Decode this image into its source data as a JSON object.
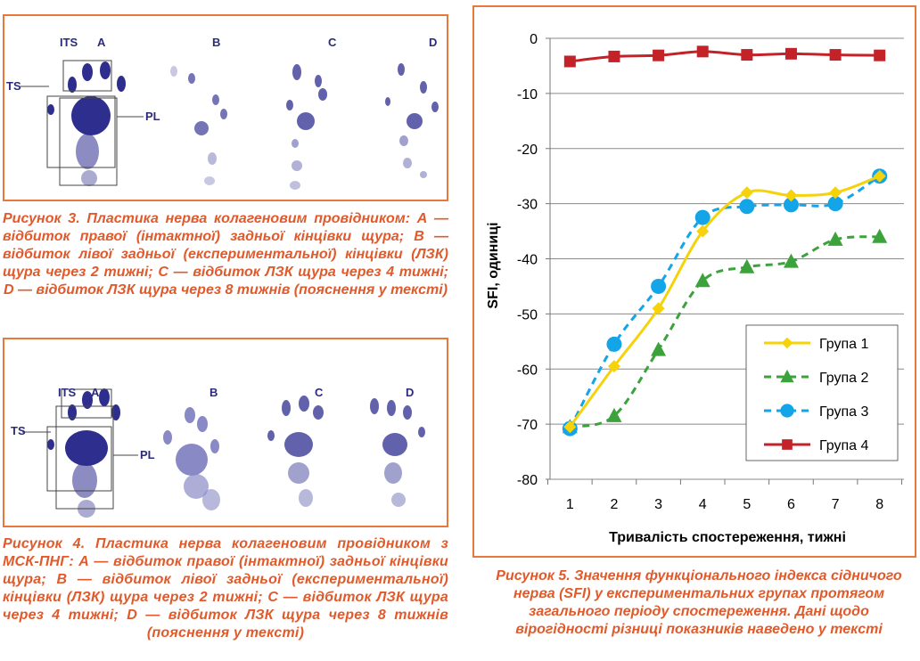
{
  "figure3": {
    "labels": {
      "its": "ITS",
      "a": "A",
      "b": "B",
      "c": "C",
      "d": "D",
      "ts": "TS",
      "pl": "PL"
    },
    "caption": "Рисунок 3. Пластика нерва колагеновим провідником: А — відбиток правої (інтактної) задньої кінцівки щура; В — відбиток лівої задньої (експериментальної) кінцівки (ЛЗК) щура через 2 тижні; С — відбиток ЛЗК щура через 4 тижні; D — відбиток ЛЗК щура через 8 тижнів (пояснення у тексті)"
  },
  "figure4": {
    "labels": {
      "its": "ITS",
      "a": "A",
      "b": "B",
      "c": "C",
      "d": "D",
      "ts": "TS",
      "pl": "PL"
    },
    "caption": "Рисунок 4. Пластика нерва колагеновим провідником з МСК-ПНГ: А — відбиток правої (інтактної) задньої кінцівки щура; В — відбиток лівої задньої (експериментальної) кінцівки (ЛЗК) щура через 2 тижні; С — відбиток ЛЗК щура через 4 тижні; D — відбиток ЛЗК щура через 8 тижнів (пояснення у тексті)"
  },
  "figure5": {
    "caption": "Рисунок 5. Значення функціонального індекса сідничого нерва (SFI) у експериментальних групах протягом загального періоду спостереження. Дані щодо вірогідності різниці показників наведено у тексті"
  },
  "chart_data": {
    "type": "line",
    "xlabel": "Тривалість спостереження, тижні",
    "ylabel": "SFI, одиниці",
    "x": [
      1,
      2,
      3,
      4,
      5,
      6,
      7,
      8
    ],
    "ylim": [
      -80,
      0
    ],
    "yticks": [
      0,
      -10,
      -20,
      -30,
      -40,
      -50,
      -60,
      -70,
      -80
    ],
    "grid": "horizontal",
    "legend": "bottom-right",
    "series": [
      {
        "name": "Група 1",
        "values": [
          -70.5,
          -59.5,
          -49,
          -35,
          -28,
          -28.5,
          -28,
          -25
        ],
        "color": "#f5d20a",
        "dash": "solid",
        "marker": "diamond"
      },
      {
        "name": "Група 2",
        "values": [
          -70.5,
          -68.5,
          -56.5,
          -44,
          -41.5,
          -40.5,
          -36.5,
          -36
        ],
        "color": "#3ca23c",
        "dash": "dashed",
        "marker": "triangle"
      },
      {
        "name": "Група 3",
        "values": [
          -70.8,
          -55.5,
          -45,
          -32.5,
          -30.5,
          -30.2,
          -30,
          -25
        ],
        "color": "#13a5e8",
        "dash": "dashed",
        "marker": "circle"
      },
      {
        "name": "Група 4",
        "values": [
          -4.2,
          -3.3,
          -3.1,
          -2.4,
          -3,
          -2.8,
          -3,
          -3.1
        ],
        "color": "#c22228",
        "dash": "solid",
        "marker": "square"
      }
    ]
  }
}
